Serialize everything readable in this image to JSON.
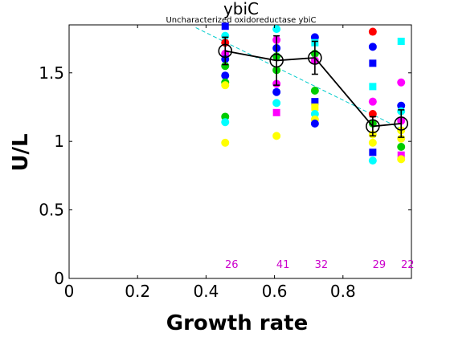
{
  "chart_data": {
    "type": "scatter",
    "title": "ybiC",
    "subtitle": "Uncharacterized oxidoreductase ybiC",
    "xlabel": "Growth rate",
    "ylabel": "U/L",
    "xlim": [
      0,
      1.0
    ],
    "ylim": [
      0,
      1.85
    ],
    "xticks": [
      0,
      0.2,
      0.4,
      0.6,
      0.8
    ],
    "xtick_labels": [
      "0",
      "0.2",
      "0.4",
      "0.6",
      "0.8"
    ],
    "yticks": [
      0,
      0.5,
      1,
      1.5
    ],
    "ytick_labels": [
      "0",
      "0.5",
      "1",
      "1.5"
    ],
    "grid": false,
    "colors": {
      "mean_line": "#000000",
      "fit_line": "#00cccc",
      "count_text": "#cc00cc",
      "points": [
        "#ffff00",
        "#00ffff",
        "#00cc00",
        "#ff00ff",
        "#0000ff",
        "#ff0000"
      ]
    },
    "fit_line": {
      "x": [
        0.37,
        0.98
      ],
      "y": [
        1.83,
        1.08
      ]
    },
    "mean_series": {
      "x": [
        0.456,
        0.606,
        0.718,
        0.887,
        0.97
      ],
      "y": [
        1.66,
        1.59,
        1.61,
        1.11,
        1.13
      ],
      "err": [
        0.1,
        0.18,
        0.12,
        0.07,
        0.1
      ]
    },
    "counts": [
      {
        "x": 0.456,
        "label": "26"
      },
      {
        "x": 0.606,
        "label": "41"
      },
      {
        "x": 0.718,
        "label": "32"
      },
      {
        "x": 0.887,
        "label": "29"
      },
      {
        "x": 0.97,
        "label": "22"
      }
    ],
    "points": [
      {
        "x": 0.456,
        "y": 1.84,
        "c": "#0000ff",
        "s": "square"
      },
      {
        "x": 0.456,
        "y": 1.77,
        "c": "#00ffff",
        "s": "circle"
      },
      {
        "x": 0.456,
        "y": 1.72,
        "c": "#ff0000",
        "s": "circle"
      },
      {
        "x": 0.456,
        "y": 1.64,
        "c": "#ff00ff",
        "s": "circle"
      },
      {
        "x": 0.456,
        "y": 1.6,
        "c": "#0000ff",
        "s": "circle"
      },
      {
        "x": 0.456,
        "y": 1.55,
        "c": "#00cc00",
        "s": "circle"
      },
      {
        "x": 0.456,
        "y": 1.48,
        "c": "#0000ff",
        "s": "circle"
      },
      {
        "x": 0.456,
        "y": 1.43,
        "c": "#00cc00",
        "s": "circle"
      },
      {
        "x": 0.456,
        "y": 1.41,
        "c": "#ffff00",
        "s": "circle"
      },
      {
        "x": 0.456,
        "y": 1.18,
        "c": "#00cc00",
        "s": "circle"
      },
      {
        "x": 0.456,
        "y": 1.14,
        "c": "#00ffff",
        "s": "circle"
      },
      {
        "x": 0.456,
        "y": 0.99,
        "c": "#ffff00",
        "s": "circle"
      },
      {
        "x": 0.606,
        "y": 1.82,
        "c": "#00ffff",
        "s": "circle"
      },
      {
        "x": 0.606,
        "y": 1.74,
        "c": "#ff00ff",
        "s": "circle"
      },
      {
        "x": 0.606,
        "y": 1.68,
        "c": "#0000ff",
        "s": "circle"
      },
      {
        "x": 0.606,
        "y": 1.62,
        "c": "#00cc00",
        "s": "circle"
      },
      {
        "x": 0.606,
        "y": 1.52,
        "c": "#00cc00",
        "s": "circle"
      },
      {
        "x": 0.606,
        "y": 1.42,
        "c": "#ff00ff",
        "s": "circle"
      },
      {
        "x": 0.606,
        "y": 1.36,
        "c": "#0000ff",
        "s": "circle"
      },
      {
        "x": 0.606,
        "y": 1.28,
        "c": "#00ffff",
        "s": "circle"
      },
      {
        "x": 0.606,
        "y": 1.21,
        "c": "#ff00ff",
        "s": "square"
      },
      {
        "x": 0.606,
        "y": 1.04,
        "c": "#ffff00",
        "s": "circle"
      },
      {
        "x": 0.718,
        "y": 1.76,
        "c": "#0000ff",
        "s": "circle"
      },
      {
        "x": 0.718,
        "y": 1.72,
        "c": "#00ffff",
        "s": "square"
      },
      {
        "x": 0.718,
        "y": 1.64,
        "c": "#00cc00",
        "s": "circle"
      },
      {
        "x": 0.718,
        "y": 1.59,
        "c": "#ff00ff",
        "s": "circle"
      },
      {
        "x": 0.718,
        "y": 1.37,
        "c": "#00cc00",
        "s": "circle"
      },
      {
        "x": 0.718,
        "y": 1.29,
        "c": "#0000ff",
        "s": "square"
      },
      {
        "x": 0.718,
        "y": 1.25,
        "c": "#ffff00",
        "s": "square"
      },
      {
        "x": 0.718,
        "y": 1.2,
        "c": "#00ffff",
        "s": "circle"
      },
      {
        "x": 0.718,
        "y": 1.16,
        "c": "#ffff00",
        "s": "circle"
      },
      {
        "x": 0.718,
        "y": 1.13,
        "c": "#0000ff",
        "s": "circle"
      },
      {
        "x": 0.887,
        "y": 1.8,
        "c": "#ff0000",
        "s": "circle"
      },
      {
        "x": 0.887,
        "y": 1.69,
        "c": "#0000ff",
        "s": "circle"
      },
      {
        "x": 0.887,
        "y": 1.57,
        "c": "#0000ff",
        "s": "square"
      },
      {
        "x": 0.887,
        "y": 1.4,
        "c": "#00ffff",
        "s": "square"
      },
      {
        "x": 0.887,
        "y": 1.29,
        "c": "#ff00ff",
        "s": "circle"
      },
      {
        "x": 0.887,
        "y": 1.2,
        "c": "#ff0000",
        "s": "circle"
      },
      {
        "x": 0.887,
        "y": 1.13,
        "c": "#00cc00",
        "s": "circle"
      },
      {
        "x": 0.887,
        "y": 1.05,
        "c": "#ffff00",
        "s": "circle"
      },
      {
        "x": 0.887,
        "y": 0.99,
        "c": "#ffff00",
        "s": "circle"
      },
      {
        "x": 0.887,
        "y": 0.92,
        "c": "#0000ff",
        "s": "square"
      },
      {
        "x": 0.887,
        "y": 0.86,
        "c": "#00ffff",
        "s": "circle"
      },
      {
        "x": 0.97,
        "y": 1.73,
        "c": "#00ffff",
        "s": "square"
      },
      {
        "x": 0.97,
        "y": 1.43,
        "c": "#ff00ff",
        "s": "circle"
      },
      {
        "x": 0.97,
        "y": 1.26,
        "c": "#0000ff",
        "s": "circle"
      },
      {
        "x": 0.97,
        "y": 1.22,
        "c": "#00ffff",
        "s": "circle"
      },
      {
        "x": 0.97,
        "y": 1.15,
        "c": "#ff00ff",
        "s": "circle"
      },
      {
        "x": 0.97,
        "y": 1.08,
        "c": "#ffff00",
        "s": "circle"
      },
      {
        "x": 0.97,
        "y": 1.02,
        "c": "#ffff00",
        "s": "circle"
      },
      {
        "x": 0.97,
        "y": 0.96,
        "c": "#00cc00",
        "s": "circle"
      },
      {
        "x": 0.97,
        "y": 0.9,
        "c": "#ff00ff",
        "s": "square"
      },
      {
        "x": 0.97,
        "y": 0.87,
        "c": "#ffff00",
        "s": "circle"
      }
    ]
  }
}
